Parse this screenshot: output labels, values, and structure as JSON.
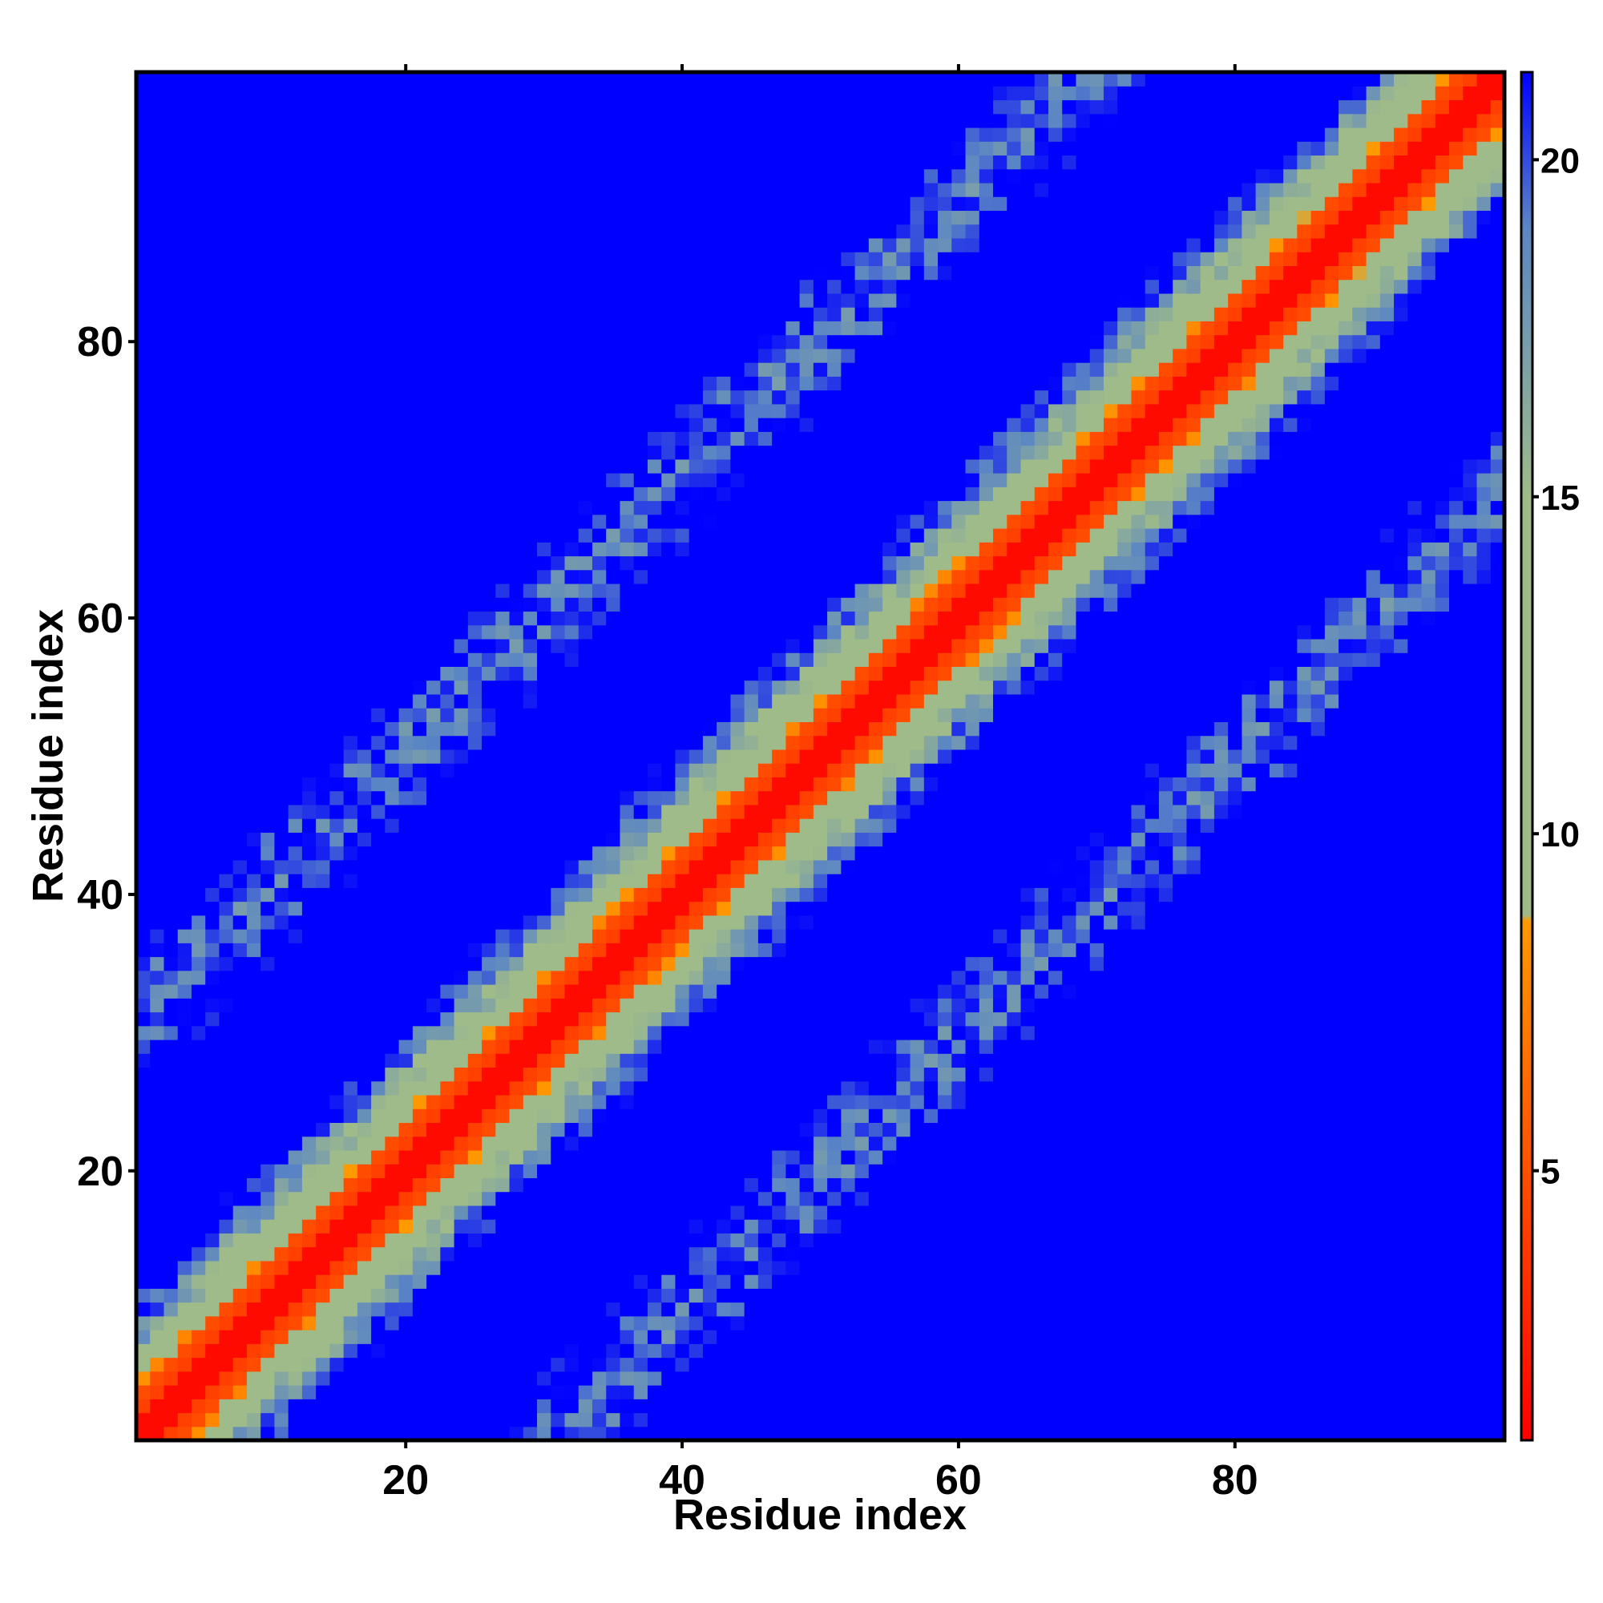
{
  "chart_data": {
    "type": "heatmap",
    "title": "",
    "xlabel": "Residue index",
    "ylabel": "Residue index",
    "x_range": [
      1,
      99
    ],
    "y_range": [
      1,
      99
    ],
    "x_ticks": [
      20,
      40,
      60,
      80
    ],
    "y_ticks": [
      20,
      40,
      60,
      80
    ],
    "x_tick_labels": [
      "20",
      "40",
      "60",
      "80"
    ],
    "y_tick_labels": [
      "20",
      "40",
      "60",
      "80"
    ],
    "colorbar": {
      "ticks": [
        5,
        10,
        15,
        20
      ],
      "tick_labels": [
        "5",
        "10",
        "15",
        "20"
      ],
      "range": [
        1,
        21.3
      ],
      "placement": "right",
      "stops": [
        {
          "value": 1,
          "color": "#ff0000"
        },
        {
          "value": 8.7,
          "color": "#ff9900"
        },
        {
          "value": 8.8,
          "color": "#9fbb8a"
        },
        {
          "value": 15,
          "color": "#9fbb8a"
        },
        {
          "value": 19,
          "color": "#5b86c4"
        },
        {
          "value": 21.3,
          "color": "#0000ff"
        }
      ]
    },
    "value_clip_max": 21.3,
    "grid": false,
    "description_of_pattern": "Symmetric residue-residue distance map; diagonal near 1-4; parallel/antiparallel contact bands; blue regions beyond 20"
  },
  "colors": {
    "contact": "#ff0000",
    "near": "#ff9900",
    "mid": "#9fbb8a",
    "far_mid": "#5b86c4",
    "far": "#0000ff"
  }
}
